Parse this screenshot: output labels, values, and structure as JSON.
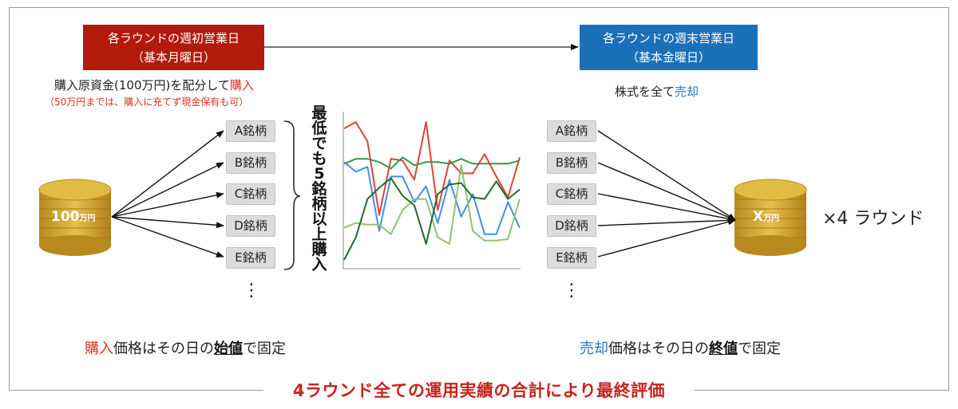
{
  "top_left_box": {
    "line1": "各ラウンドの週初営業日",
    "line2": "（基本月曜日）"
  },
  "top_right_box": {
    "line1": "各ラウンドの週末営業日",
    "line2": "（基本金曜日）"
  },
  "buy_text": {
    "prefix": "購入原資金(100万円)を配分して",
    "emph": "購入"
  },
  "buy_note": "（50万円までは、購入に充てず現金保有も可）",
  "sell_text": {
    "prefix": "株式を全て",
    "emph": "売却"
  },
  "left_stocks": [
    "A銘柄",
    "B銘柄",
    "C銘柄",
    "D銘柄",
    "E銘柄"
  ],
  "right_stocks": [
    "A銘柄",
    "B銘柄",
    "C銘柄",
    "D銘柄",
    "E銘柄"
  ],
  "dots": "⋮",
  "vertical_note": "最低でも5銘柄以上購入",
  "left_coin": {
    "main": "100",
    "unit": "万円",
    "color": "#d4a52a"
  },
  "right_coin": {
    "main": "X",
    "unit": "万円",
    "color": "#d4a52a"
  },
  "rounds_label": "×4 ラウンド",
  "buy_price": {
    "emph": "購入",
    "mid": "価格はその日の",
    "key": "始値",
    "suffix": "で固定"
  },
  "sell_price": {
    "emph": "売却",
    "mid": "価格はその日の",
    "key": "終値",
    "suffix": "で固定"
  },
  "footer": "4ラウンド全ての運用実績の合計により最終評価",
  "colors": {
    "red_box": "#b21a0c",
    "blue_box": "#1b70b7",
    "accent_red": "#e0301e",
    "accent_blue": "#1f78c1"
  },
  "chart_data": {
    "type": "line",
    "title": "",
    "xlabel": "",
    "ylabel": "",
    "x": [
      1,
      2,
      3,
      4,
      5,
      6,
      7,
      8,
      9,
      10,
      11,
      12,
      13,
      14,
      15,
      16
    ],
    "series": [
      {
        "color": "#e0413a",
        "values": [
          8.6,
          9.0,
          7.8,
          3.2,
          6.7,
          6.6,
          5.4,
          9.0,
          3.5,
          6.6,
          5.8,
          5.8,
          7.0,
          5.6,
          4.3,
          6.8
        ]
      },
      {
        "color": "#2e9b45",
        "values": [
          6.4,
          6.7,
          6.7,
          6.5,
          6.1,
          6.8,
          6.3,
          6.5,
          6.5,
          6.4,
          6.7,
          6.4,
          6.4,
          6.4,
          6.4,
          6.6
        ]
      },
      {
        "color": "#3f92e0",
        "values": [
          6.5,
          5.9,
          6.2,
          2.2,
          5.6,
          5.6,
          4.0,
          5.0,
          2.7,
          5.4,
          3.1,
          4.5,
          2.0,
          2.0,
          4.0,
          2.4
        ]
      },
      {
        "color": "#90c275",
        "values": [
          2.4,
          2.7,
          2.6,
          2.6,
          2.0,
          3.5,
          4.2,
          4.2,
          1.8,
          1.4,
          6.3,
          2.2,
          1.6,
          1.6,
          1.7,
          4.2
        ]
      },
      {
        "color": "#256a2c",
        "values": [
          0.4,
          1.8,
          4.2,
          4.9,
          5.5,
          4.4,
          3.8,
          1.4,
          4.5,
          5.1,
          5.2,
          4.3,
          4.2,
          5.3,
          4.2,
          4.8
        ]
      }
    ]
  }
}
